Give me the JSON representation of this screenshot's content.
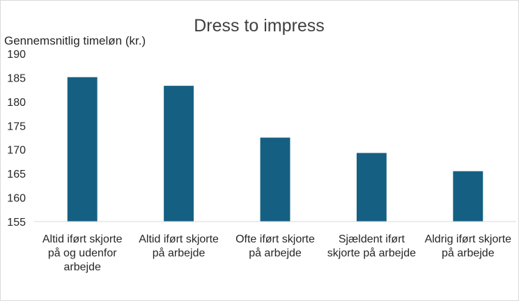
{
  "chart_data": {
    "type": "bar",
    "title": "Dress to impress",
    "ylabel": "Gennemsnitlig timeløn (kr.)",
    "xlabel": "",
    "categories": [
      [
        "Altid iført skjorte",
        "på og udenfor",
        "arbejde"
      ],
      [
        "Altid iført skjorte",
        "på arbejde"
      ],
      [
        "Ofte iført skjorte",
        "på arbejde"
      ],
      [
        "Sjældent iført",
        "skjorte på arbejde"
      ],
      [
        "Aldrig iført skjorte",
        "på arbejde"
      ]
    ],
    "values": [
      185.1,
      183.3,
      172.5,
      169.3,
      165.5
    ],
    "ylim": [
      155,
      190
    ],
    "yticks": [
      155,
      160,
      165,
      170,
      175,
      180,
      185,
      190
    ],
    "grid": false,
    "legend": "none",
    "bar_color": "#156082",
    "axis_color": "#d9d9d9"
  }
}
